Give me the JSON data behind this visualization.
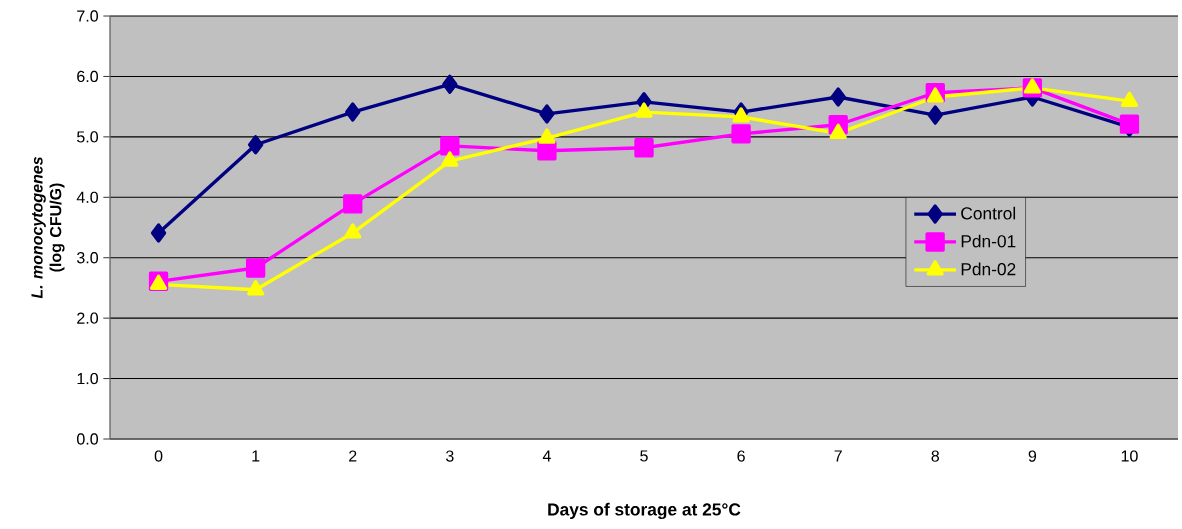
{
  "chart_data": {
    "type": "line",
    "xlabel": "Days of storage at 25°C",
    "ylabel": "*L. monocytogenes* (log CFU/G)",
    "categories": [
      "0",
      "1",
      "2",
      "3",
      "4",
      "5",
      "6",
      "7",
      "8",
      "9",
      "10"
    ],
    "series": [
      {
        "name": "Control",
        "color": "#000080",
        "marker": "diamond",
        "values": [
          3.41,
          4.87,
          5.41,
          5.87,
          5.38,
          5.58,
          5.41,
          5.66,
          5.36,
          5.66,
          5.16
        ]
      },
      {
        "name": "Pdn-01",
        "color": "#ff00ff",
        "marker": "square",
        "values": [
          2.61,
          2.83,
          3.89,
          4.85,
          4.77,
          4.82,
          5.05,
          5.2,
          5.73,
          5.81,
          5.21
        ]
      },
      {
        "name": "Pdn-02",
        "color": "#ffff00",
        "marker": "triangle",
        "values": [
          2.56,
          2.47,
          3.41,
          4.6,
          4.98,
          5.41,
          5.33,
          5.06,
          5.66,
          5.81,
          5.59
        ]
      }
    ],
    "ylim": [
      0,
      7
    ],
    "yticks": [
      {
        "value": 0,
        "label": "0.0"
      },
      {
        "value": 1,
        "label": "1.0"
      },
      {
        "value": 2,
        "label": "2.0"
      },
      {
        "value": 3,
        "label": "3.0"
      },
      {
        "value": 4,
        "label": "4.0"
      },
      {
        "value": 5,
        "label": "5.0"
      },
      {
        "value": 6,
        "label": "6.0"
      },
      {
        "value": 7,
        "label": "7.0"
      }
    ],
    "grid": "y",
    "legend": "right",
    "line_style": "solid"
  }
}
